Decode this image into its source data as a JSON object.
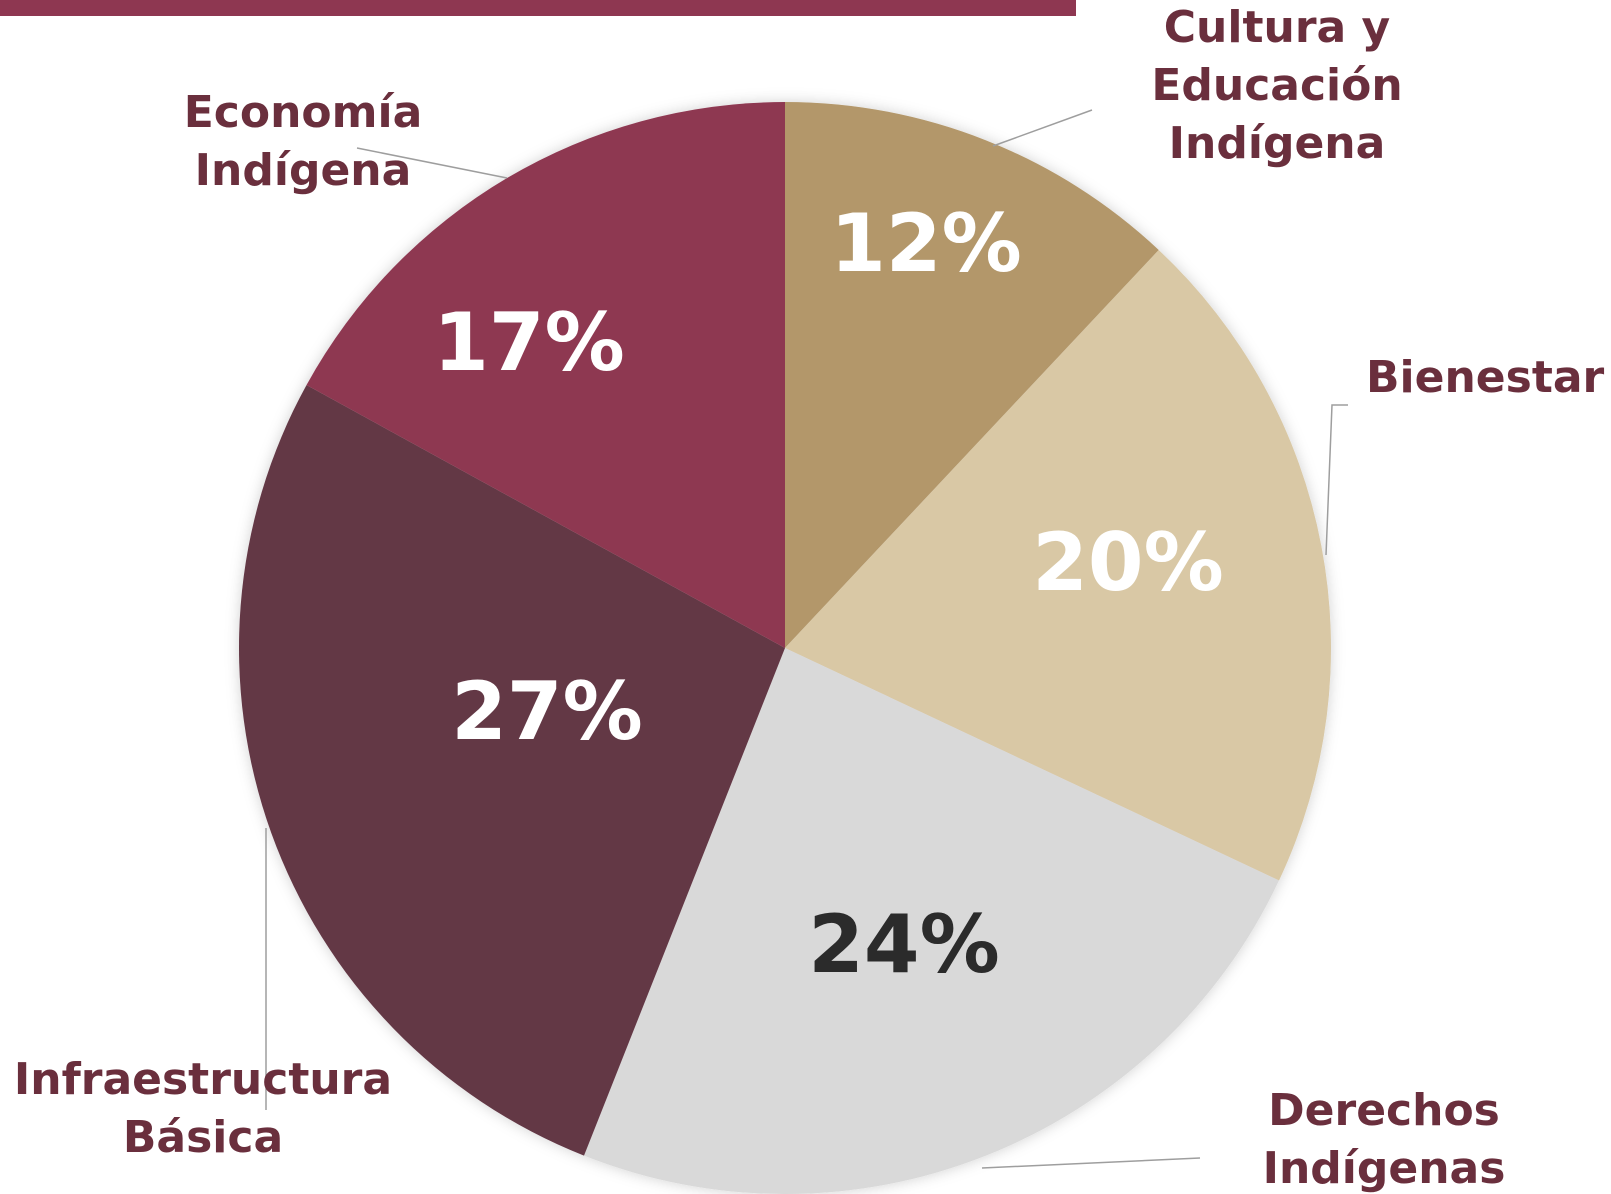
{
  "chart_data": {
    "type": "pie",
    "start_angle_deg": 0,
    "direction": "clockwise",
    "slices": [
      {
        "label_lines": [
          "Cultura y",
          "Educación",
          "Indígena"
        ],
        "value": 12,
        "value_label": "12%",
        "color": "#b3976a",
        "value_color": "#ffffff"
      },
      {
        "label_lines": [
          "Bienestar"
        ],
        "value": 20,
        "value_label": "20%",
        "color": "#d9c8a5",
        "value_color": "#ffffff"
      },
      {
        "label_lines": [
          "Derechos",
          "Indígenas"
        ],
        "value": 24,
        "value_label": "24%",
        "color": "#d9d9d9",
        "value_color": "#2b2b2b"
      },
      {
        "label_lines": [
          "Infraestructura",
          "Básica"
        ],
        "value": 27,
        "value_label": "27%",
        "color": "#633745",
        "value_color": "#ffffff"
      },
      {
        "label_lines": [
          "Economía",
          "Indígena"
        ],
        "value": 17,
        "value_label": "17%",
        "color": "#8e3751",
        "value_color": "#ffffff"
      }
    ]
  },
  "colors": {
    "header_bar": "#8e3751",
    "label_text": "#6a2f3d",
    "leader_line": "#9e9e9e"
  }
}
